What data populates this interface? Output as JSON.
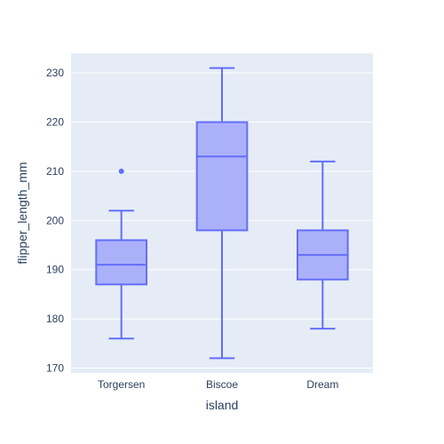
{
  "chart_data": {
    "type": "box",
    "xlabel": "island",
    "ylabel": "flipper_length_mm",
    "categories": [
      "Torgersen",
      "Biscoe",
      "Dream"
    ],
    "ylim": [
      169,
      234
    ],
    "yticks": [
      170,
      180,
      190,
      200,
      210,
      220,
      230
    ],
    "grid": true,
    "boxes": [
      {
        "category": "Torgersen",
        "whisker_low": 176,
        "q1": 187,
        "median": 191,
        "q3": 196,
        "whisker_high": 202,
        "outliers": [
          210
        ]
      },
      {
        "category": "Biscoe",
        "whisker_low": 172,
        "q1": 198,
        "median": 213,
        "q3": 220,
        "whisker_high": 231,
        "outliers": []
      },
      {
        "category": "Dream",
        "whisker_low": 178,
        "q1": 188,
        "median": 193,
        "q3": 198,
        "whisker_high": 212,
        "outliers": []
      }
    ],
    "colors": {
      "plot_bg": "#e5ecf6",
      "grid": "#ffffff",
      "box_fill": "#abb1f9",
      "box_line": "#636efa",
      "text": "#2a3f5f"
    }
  }
}
